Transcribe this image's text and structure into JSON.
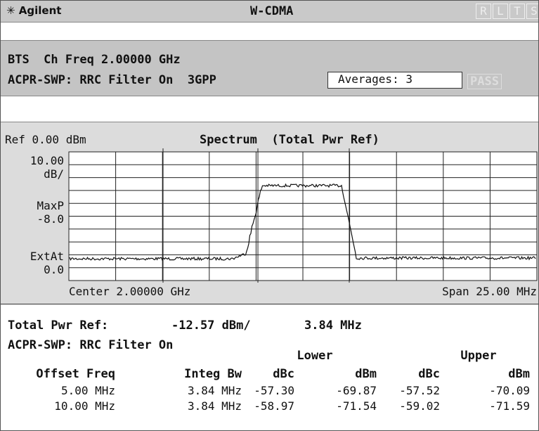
{
  "header": {
    "brand": "Agilent",
    "mode": "W-CDMA",
    "indicators": [
      "R",
      "L",
      "T",
      "S"
    ]
  },
  "settings": {
    "line1": "BTS  Ch Freq 2.00000 GHz",
    "line2": "ACPR-SWP: RRC Filter On  3GPP",
    "averages": "Averages: 3",
    "status": "PASS"
  },
  "display": {
    "ref": "Ref 0.00 dBm",
    "title": "Spectrum  (Total Pwr Ref)",
    "scale": [
      "10.00",
      "dB/"
    ],
    "detector": [
      "MaxP",
      "-8.0"
    ],
    "attenuation": [
      "ExtAt",
      "0.0"
    ],
    "center": "Center 2.00000 GHz",
    "span": "Span 25.00 MHz"
  },
  "results": {
    "total_label": "Total Pwr Ref:",
    "total_value": "-12.57 dBm/",
    "total_bw": "3.84 MHz",
    "method": "ACPR-SWP: RRC Filter On",
    "groups": [
      "Lower",
      "Upper"
    ],
    "columns": [
      "Offset Freq",
      "Integ Bw",
      "dBc",
      "dBm",
      "dBc",
      "dBm"
    ],
    "rows": [
      [
        "5.00 MHz",
        "3.84 MHz",
        "-57.30",
        "-69.87",
        "-57.52",
        "-70.09"
      ],
      [
        "10.00 MHz",
        "3.84 MHz",
        "-58.97",
        "-71.54",
        "-59.02",
        "-71.59"
      ]
    ]
  }
}
